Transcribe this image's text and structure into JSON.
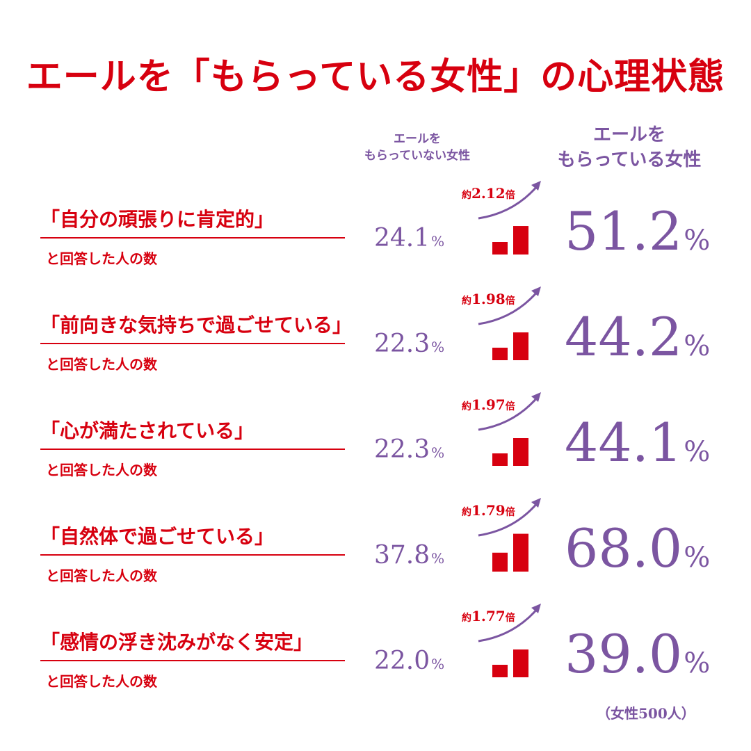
{
  "title": "エールを「もらっている女性」の心理状態",
  "colors": {
    "accent_red": "#d7000f",
    "accent_purple": "#7b55a1"
  },
  "column_headers": {
    "without": [
      "エールを",
      "もらっていない女性"
    ],
    "with": [
      "エールを",
      "もらっている女性"
    ]
  },
  "answer_suffix": "と回答した人の数",
  "percent_sign": "%",
  "multiplier_prefix": "約",
  "multiplier_suffix": "倍",
  "footnote": "（女性500人）",
  "chart_data": {
    "type": "table",
    "title": "エールを「もらっている女性」の心理状態",
    "series": [
      {
        "name": "エールをもらっていない女性",
        "values": [
          24.1,
          22.3,
          22.3,
          37.8,
          22.0
        ]
      },
      {
        "name": "エールをもらっている女性",
        "values": [
          51.2,
          44.2,
          44.1,
          68.0,
          39.0
        ]
      }
    ],
    "unit": "%",
    "rows": [
      {
        "question": "「自分の頑張りに肯定的」",
        "without": "24.1",
        "with": "51.2",
        "multiplier": "2.12"
      },
      {
        "question": "「前向きな気持ちで過ごせている」",
        "without": "22.3",
        "with": "44.2",
        "multiplier": "1.98"
      },
      {
        "question": "「心が満たされている」",
        "without": "22.3",
        "with": "44.1",
        "multiplier": "1.97"
      },
      {
        "question": "「自然体で過ごせている」",
        "without": "37.8",
        "with": "68.0",
        "multiplier": "1.79"
      },
      {
        "question": "「感情の浮き沈みがなく安定」",
        "without": "22.0",
        "with": "39.0",
        "multiplier": "1.77"
      }
    ],
    "note": "（女性500人）"
  }
}
